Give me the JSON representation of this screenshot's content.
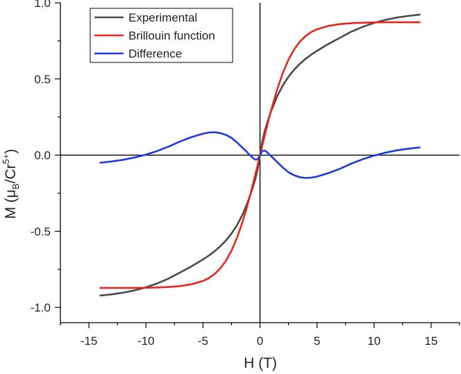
{
  "chart_data": {
    "type": "line",
    "title": "",
    "xlabel": "H (T)",
    "ylabel": {
      "prefix": "M (",
      "mu": "μ",
      "mu_sub": "B",
      "slash": "/Cr",
      "sup": "5+",
      "suffix": ")"
    },
    "xlim": [
      -17.5,
      17.5
    ],
    "ylim": [
      -1.1,
      1.0
    ],
    "xticks": [
      -15,
      -10,
      -5,
      0,
      5,
      10,
      15
    ],
    "xtick_labels": [
      "-15",
      "-10",
      "-5",
      "0",
      "5",
      "10",
      "15"
    ],
    "yticks": [
      -1.0,
      -0.5,
      0.0,
      0.5,
      1.0
    ],
    "ytick_labels": [
      "-1.0",
      "-0.5",
      "0.0",
      "0.5",
      "1.0"
    ],
    "grid": false,
    "zero_lines": true,
    "legend_position": "top-left",
    "x": [
      -14,
      -13,
      -12,
      -11,
      -10,
      -9,
      -8,
      -7,
      -6,
      -5,
      -4.5,
      -4,
      -3.5,
      -3,
      -2.5,
      -2,
      -1.5,
      -1.2,
      -1,
      -0.8,
      -0.6,
      -0.4,
      -0.2,
      0,
      0.2,
      0.4,
      0.6,
      0.8,
      1,
      1.5,
      2,
      2.5,
      3,
      3.5,
      4,
      4.5,
      5,
      6,
      7,
      8,
      9,
      10,
      11,
      12,
      13,
      14
    ],
    "series": [
      {
        "name": "Experimental",
        "color": "#4a4a4a",
        "values": [
          -0.922,
          -0.914,
          -0.903,
          -0.888,
          -0.868,
          -0.842,
          -0.81,
          -0.77,
          -0.73,
          -0.685,
          -0.66,
          -0.632,
          -0.6,
          -0.562,
          -0.515,
          -0.458,
          -0.385,
          -0.33,
          -0.292,
          -0.25,
          -0.205,
          -0.155,
          -0.09,
          0.0,
          0.09,
          0.155,
          0.205,
          0.25,
          0.292,
          0.385,
          0.458,
          0.515,
          0.562,
          0.6,
          0.632,
          0.66,
          0.685,
          0.73,
          0.77,
          0.81,
          0.842,
          0.868,
          0.888,
          0.903,
          0.914,
          0.922
        ]
      },
      {
        "name": "Brillouin function",
        "color": "#e8241f",
        "values": [
          -0.872,
          -0.872,
          -0.872,
          -0.872,
          -0.871,
          -0.869,
          -0.866,
          -0.86,
          -0.848,
          -0.826,
          -0.808,
          -0.782,
          -0.745,
          -0.695,
          -0.628,
          -0.54,
          -0.43,
          -0.355,
          -0.3,
          -0.245,
          -0.185,
          -0.125,
          -0.063,
          0.0,
          0.063,
          0.125,
          0.185,
          0.245,
          0.3,
          0.43,
          0.54,
          0.628,
          0.695,
          0.745,
          0.782,
          0.808,
          0.826,
          0.848,
          0.86,
          0.866,
          0.869,
          0.871,
          0.872,
          0.872,
          0.872,
          0.872
        ]
      },
      {
        "name": "Difference",
        "color": "#1f37e0",
        "values": [
          -0.05,
          -0.042,
          -0.031,
          -0.016,
          0.003,
          0.027,
          0.056,
          0.09,
          0.118,
          0.141,
          0.148,
          0.15,
          0.145,
          0.133,
          0.113,
          0.082,
          0.045,
          0.025,
          0.008,
          -0.005,
          -0.02,
          -0.03,
          -0.027,
          0.0,
          0.027,
          0.03,
          0.02,
          0.005,
          -0.008,
          -0.045,
          -0.082,
          -0.113,
          -0.133,
          -0.145,
          -0.15,
          -0.148,
          -0.141,
          -0.118,
          -0.09,
          -0.056,
          -0.027,
          -0.003,
          0.016,
          0.031,
          0.042,
          0.05
        ]
      }
    ]
  }
}
